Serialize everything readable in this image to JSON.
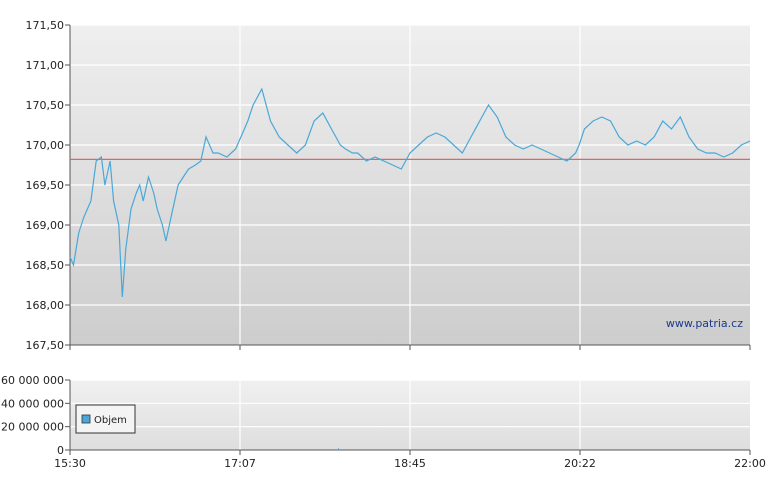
{
  "chart_data": [
    {
      "type": "line",
      "title": "",
      "xlabel": "",
      "ylabel": "",
      "ylim": [
        167.5,
        171.5
      ],
      "y_ticks": [
        "171,50",
        "171,00",
        "170,50",
        "170,00",
        "169,50",
        "169,00",
        "168,50",
        "168,00",
        "167,50"
      ],
      "y_tick_values": [
        171.5,
        171.0,
        170.5,
        170.0,
        169.5,
        169.0,
        168.5,
        168.0,
        167.5
      ],
      "x_range": [
        "15:30",
        "22:00"
      ],
      "x_ticks": [
        "15:30",
        "17:07",
        "18:45",
        "20:22",
        "22:00"
      ],
      "grid": true,
      "reference_line": {
        "value": 169.82,
        "color": "#e06666"
      },
      "series_color": "#4aa8d8",
      "watermark": "www.patria.cz",
      "series": [
        {
          "x": [
            "15:30",
            "15:32",
            "15:35",
            "15:38",
            "15:42",
            "15:45",
            "15:48",
            "15:50",
            "15:53",
            "15:55",
            "15:58",
            "16:00",
            "16:02",
            "16:05",
            "16:08",
            "16:10",
            "16:12",
            "16:15",
            "16:18",
            "16:20",
            "16:23",
            "16:25",
            "16:28",
            "16:32",
            "16:35",
            "16:38",
            "16:42",
            "16:45",
            "16:48",
            "16:52",
            "16:55",
            "17:00",
            "17:05",
            "17:10",
            "17:12",
            "17:15",
            "17:20",
            "17:25",
            "17:30",
            "17:35",
            "17:40",
            "17:45",
            "17:50",
            "17:55",
            "18:00",
            "18:05",
            "18:08",
            "18:12",
            "18:15",
            "18:20",
            "18:25",
            "18:30",
            "18:35",
            "18:40",
            "18:45",
            "18:50",
            "18:55",
            "19:00",
            "19:05",
            "19:10",
            "19:15",
            "19:20",
            "19:25",
            "19:30",
            "19:35",
            "19:40",
            "19:45",
            "19:50",
            "19:55",
            "20:00",
            "20:05",
            "20:10",
            "20:15",
            "20:20",
            "20:22",
            "20:25",
            "20:30",
            "20:35",
            "20:40",
            "20:45",
            "20:50",
            "20:55",
            "21:00",
            "21:05",
            "21:10",
            "21:15",
            "21:20",
            "21:25",
            "21:30",
            "21:35",
            "21:40",
            "21:45",
            "21:50",
            "21:55",
            "22:00"
          ],
          "values": [
            168.6,
            168.5,
            168.9,
            169.1,
            169.3,
            169.8,
            169.85,
            169.5,
            169.8,
            169.3,
            169.0,
            168.1,
            168.7,
            169.2,
            169.4,
            169.5,
            169.3,
            169.6,
            169.4,
            169.2,
            169.0,
            168.8,
            169.1,
            169.5,
            169.6,
            169.7,
            169.75,
            169.8,
            170.1,
            169.9,
            169.9,
            169.85,
            169.95,
            170.2,
            170.3,
            170.5,
            170.7,
            170.3,
            170.1,
            170.0,
            169.9,
            170.0,
            170.3,
            170.4,
            170.2,
            170.0,
            169.95,
            169.9,
            169.9,
            169.8,
            169.85,
            169.8,
            169.75,
            169.7,
            169.9,
            170.0,
            170.1,
            170.15,
            170.1,
            170.0,
            169.9,
            170.1,
            170.3,
            170.5,
            170.35,
            170.1,
            170.0,
            169.95,
            170.0,
            169.95,
            169.9,
            169.85,
            169.8,
            169.9,
            170.0,
            170.2,
            170.3,
            170.35,
            170.3,
            170.1,
            170.0,
            170.05,
            170.0,
            170.1,
            170.3,
            170.2,
            170.35,
            170.1,
            169.95,
            169.9,
            169.9,
            169.85,
            169.9,
            170.0,
            170.05
          ]
        }
      ]
    },
    {
      "type": "bar",
      "title": "",
      "xlabel": "",
      "ylabel": "",
      "ylim": [
        0,
        60000000
      ],
      "y_ticks": [
        "60 000 000",
        "40 000 000",
        "20 000 000",
        "0"
      ],
      "y_tick_values": [
        60000000,
        40000000,
        20000000,
        0
      ],
      "x_ticks": [
        "15:30",
        "17:07",
        "18:45",
        "20:22",
        "22:00"
      ],
      "grid": true,
      "legend": {
        "position": "left",
        "entries": [
          "Objem"
        ]
      },
      "series": [
        {
          "name": "Objem",
          "color": "#4aa8d8",
          "x": [
            "18:04"
          ],
          "values": [
            1500000
          ]
        }
      ]
    }
  ]
}
